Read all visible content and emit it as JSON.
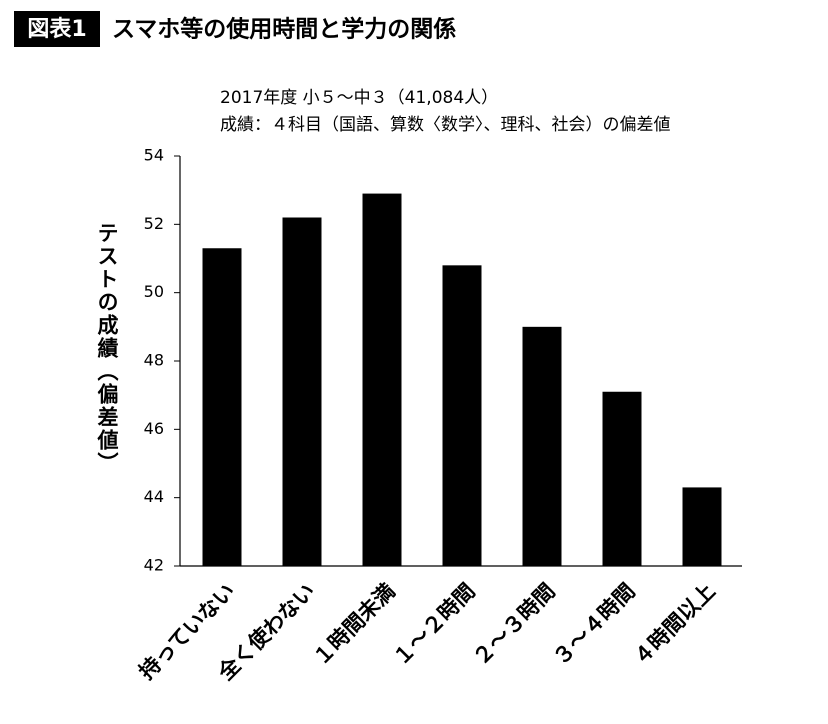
{
  "chart_data": {
    "type": "bar",
    "figure_label": "図表1",
    "title": "スマホ等の使用時間と学力の関係",
    "subtitles": [
      "2017年度 小５～中３（41,084人）",
      "成績：４科目（国語、算数〈数学〉、理科、社会）の偏差値"
    ],
    "ylabel": "テストの成績（偏差値）",
    "categories": [
      "持っていない",
      "全く使わない",
      "１時間未満",
      "１～２時間",
      "２～３時間",
      "３～４時間",
      "４時間以上"
    ],
    "values": [
      51.3,
      52.2,
      52.9,
      50.8,
      49.0,
      47.1,
      44.3
    ],
    "color": "#000000",
    "ylim": [
      42,
      54
    ],
    "yticks": [
      42,
      44,
      46,
      48,
      50,
      52,
      54
    ],
    "grid": false
  }
}
